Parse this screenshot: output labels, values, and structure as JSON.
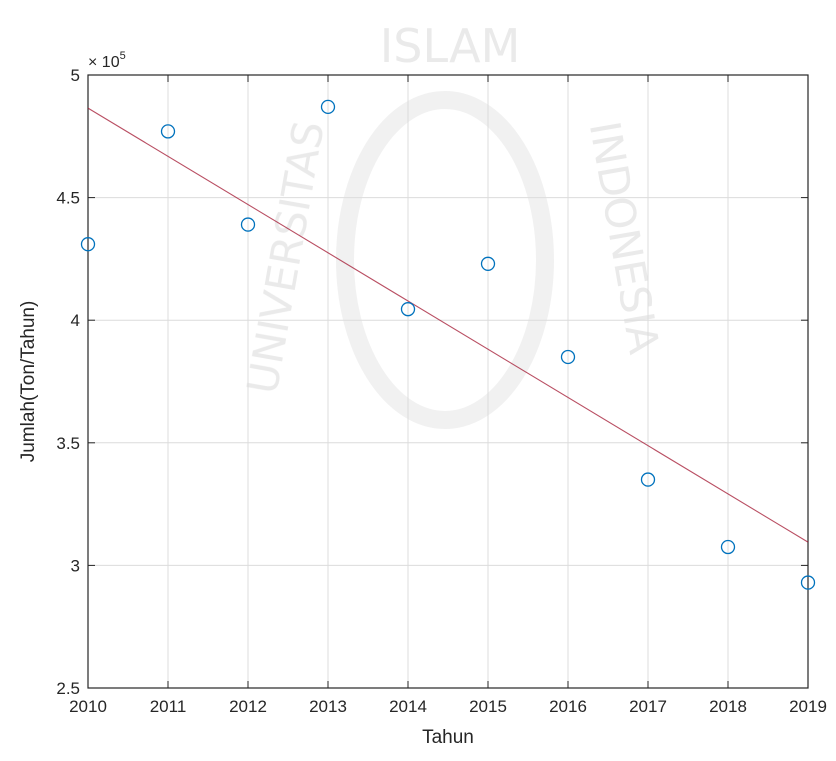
{
  "chart_data": {
    "type": "scatter",
    "xlabel": "Tahun",
    "ylabel": "Jumlah(Ton/Tahun)",
    "y_exponent_base": "× 10",
    "y_exponent_power": "5",
    "xlim": [
      2010,
      2019
    ],
    "ylim": [
      250000,
      500000
    ],
    "x_ticks": [
      2010,
      2011,
      2012,
      2013,
      2014,
      2015,
      2016,
      2017,
      2018,
      2019
    ],
    "y_ticks": [
      250000,
      300000,
      350000,
      400000,
      450000,
      500000
    ],
    "y_tick_labels": [
      "2.5",
      "3",
      "3.5",
      "4",
      "4.5",
      "5"
    ],
    "grid": true,
    "series": [
      {
        "marker": "circle",
        "color": "#0072BD",
        "x": [
          2010,
          2011,
          2012,
          2013,
          2014,
          2015,
          2016,
          2017,
          2018,
          2019
        ],
        "y": [
          431000,
          477000,
          439000,
          487000,
          404500,
          423000,
          385000,
          335000,
          307500,
          293000
        ]
      },
      {
        "style": "line",
        "color": "#A2142F",
        "x": [
          2010,
          2019
        ],
        "y": [
          486500,
          309500
        ]
      }
    ]
  },
  "watermark": {
    "text_top": "ISLAM",
    "text_left": "UNIVERSITAS",
    "text_right": "INDONESIA"
  }
}
